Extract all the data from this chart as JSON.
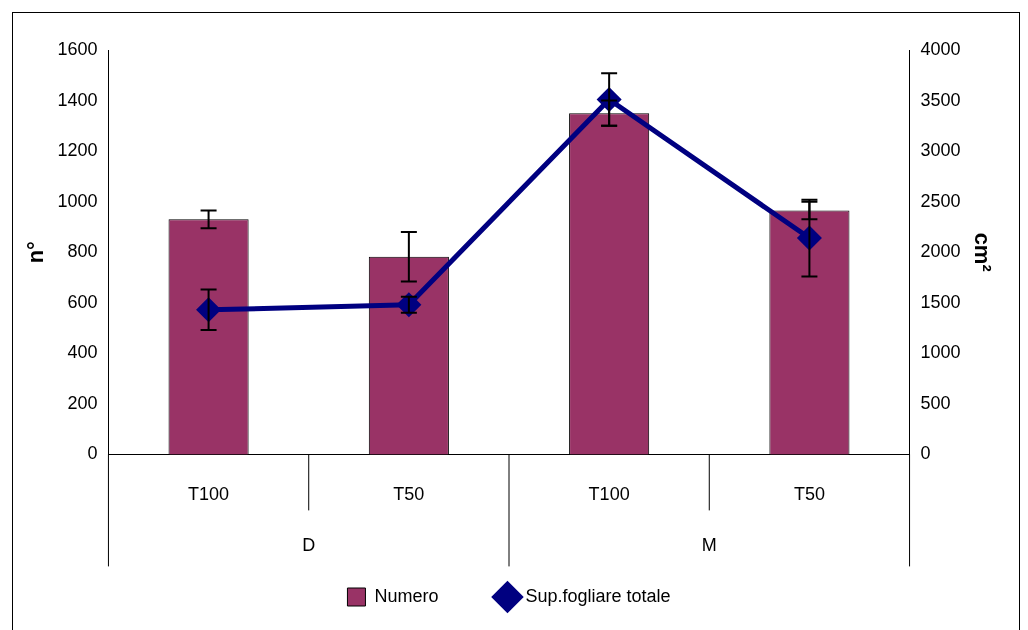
{
  "chart_data": {
    "type": "bar",
    "categories": [
      "T100",
      "T50",
      "T100",
      "T50"
    ],
    "annotations": [
      "D",
      "M"
    ],
    "ylabel": "n°",
    "y2label": "cm²",
    "series": [
      {
        "name": "Numero",
        "color": "#993366",
        "values": [
          930,
          782,
          1350,
          965
        ],
        "errors": [
          35,
          98,
          50,
          35
        ]
      },
      {
        "name": "Sup.fogliare totale",
        "type": "line",
        "axis": "y2",
        "color": "#000080",
        "values": [
          1430,
          1480,
          3510,
          2140
        ],
        "errors": [
          200,
          80,
          260,
          380
        ]
      }
    ],
    "ylim": [
      0,
      1600
    ],
    "yticks": [
      0,
      200,
      400,
      600,
      800,
      1000,
      1200,
      1400,
      1600
    ],
    "y2lim": [
      0,
      4000
    ],
    "y2ticks": [
      0,
      500,
      1000,
      1500,
      2000,
      2500,
      3000,
      3500,
      4000
    ],
    "grid": false,
    "legend": "bottom",
    "marker": "diamond",
    "line_style": "solid"
  }
}
